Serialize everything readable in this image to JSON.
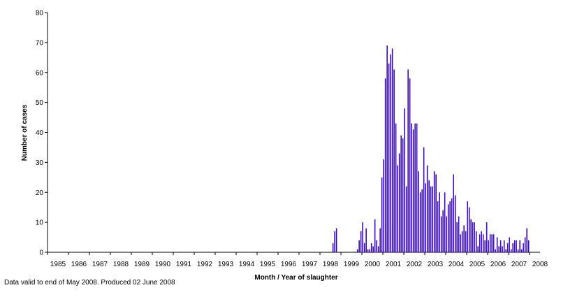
{
  "chart_data": {
    "type": "bar",
    "title": "",
    "xlabel": "Month / Year of slaughter",
    "ylabel": "Number of cases",
    "ylim": [
      0,
      80
    ],
    "yticks": [
      0,
      10,
      20,
      30,
      40,
      50,
      60,
      70,
      80
    ],
    "xlim": [
      "1985-01",
      "2008-07"
    ],
    "xtick_labels": [
      "1985",
      "1986",
      "1987",
      "1988",
      "1989",
      "1990",
      "1991",
      "1992",
      "1993",
      "1994",
      "1995",
      "1996",
      "1997",
      "1998",
      "1999",
      "2000",
      "2001",
      "2002",
      "2003",
      "2004",
      "2005",
      "2006",
      "2007",
      "2008"
    ],
    "grid": false,
    "bar_color": "#3300cc",
    "series": [
      {
        "values": [
          {
            "x": "1998-08",
            "y": 3
          },
          {
            "x": "1998-09",
            "y": 7
          },
          {
            "x": "1998-10",
            "y": 8
          },
          {
            "x": "1999-10",
            "y": 1
          },
          {
            "x": "1999-11",
            "y": 4
          },
          {
            "x": "1999-12",
            "y": 7
          },
          {
            "x": "2000-01",
            "y": 10
          },
          {
            "x": "2000-02",
            "y": 3
          },
          {
            "x": "2000-03",
            "y": 8
          },
          {
            "x": "2000-04",
            "y": 1
          },
          {
            "x": "2000-05",
            "y": 1
          },
          {
            "x": "2000-06",
            "y": 3
          },
          {
            "x": "2000-07",
            "y": 2
          },
          {
            "x": "2000-08",
            "y": 11
          },
          {
            "x": "2000-09",
            "y": 4
          },
          {
            "x": "2000-10",
            "y": 2
          },
          {
            "x": "2000-11",
            "y": 8
          },
          {
            "x": "2000-12",
            "y": 25
          },
          {
            "x": "2001-01",
            "y": 31
          },
          {
            "x": "2001-02",
            "y": 58
          },
          {
            "x": "2001-03",
            "y": 69
          },
          {
            "x": "2001-04",
            "y": 63
          },
          {
            "x": "2001-05",
            "y": 66
          },
          {
            "x": "2001-06",
            "y": 68
          },
          {
            "x": "2001-07",
            "y": 61
          },
          {
            "x": "2001-08",
            "y": 43
          },
          {
            "x": "2001-09",
            "y": 29
          },
          {
            "x": "2001-10",
            "y": 33
          },
          {
            "x": "2001-11",
            "y": 39
          },
          {
            "x": "2001-12",
            "y": 38
          },
          {
            "x": "2002-01",
            "y": 48
          },
          {
            "x": "2002-02",
            "y": 22
          },
          {
            "x": "2002-03",
            "y": 61
          },
          {
            "x": "2002-04",
            "y": 58
          },
          {
            "x": "2002-05",
            "y": 43
          },
          {
            "x": "2002-06",
            "y": 41
          },
          {
            "x": "2002-07",
            "y": 43
          },
          {
            "x": "2002-08",
            "y": 43
          },
          {
            "x": "2002-09",
            "y": 27
          },
          {
            "x": "2002-10",
            "y": 20
          },
          {
            "x": "2002-11",
            "y": 21
          },
          {
            "x": "2002-12",
            "y": 35
          },
          {
            "x": "2003-01",
            "y": 23
          },
          {
            "x": "2003-02",
            "y": 29
          },
          {
            "x": "2003-03",
            "y": 24
          },
          {
            "x": "2003-04",
            "y": 22
          },
          {
            "x": "2003-05",
            "y": 22
          },
          {
            "x": "2003-06",
            "y": 27
          },
          {
            "x": "2003-07",
            "y": 26
          },
          {
            "x": "2003-08",
            "y": 17
          },
          {
            "x": "2003-09",
            "y": 20
          },
          {
            "x": "2003-10",
            "y": 12
          },
          {
            "x": "2003-11",
            "y": 14
          },
          {
            "x": "2003-12",
            "y": 20
          },
          {
            "x": "2004-01",
            "y": 12
          },
          {
            "x": "2004-02",
            "y": 16
          },
          {
            "x": "2004-03",
            "y": 17
          },
          {
            "x": "2004-04",
            "y": 18
          },
          {
            "x": "2004-05",
            "y": 26
          },
          {
            "x": "2004-06",
            "y": 19
          },
          {
            "x": "2004-07",
            "y": 10
          },
          {
            "x": "2004-08",
            "y": 12
          },
          {
            "x": "2004-09",
            "y": 6
          },
          {
            "x": "2004-10",
            "y": 7
          },
          {
            "x": "2004-11",
            "y": 9
          },
          {
            "x": "2004-12",
            "y": 7
          },
          {
            "x": "2005-01",
            "y": 17
          },
          {
            "x": "2005-02",
            "y": 15
          },
          {
            "x": "2005-03",
            "y": 11
          },
          {
            "x": "2005-04",
            "y": 10
          },
          {
            "x": "2005-05",
            "y": 10
          },
          {
            "x": "2005-06",
            "y": 7
          },
          {
            "x": "2005-07",
            "y": 2
          },
          {
            "x": "2005-08",
            "y": 6
          },
          {
            "x": "2005-09",
            "y": 7
          },
          {
            "x": "2005-10",
            "y": 6
          },
          {
            "x": "2005-11",
            "y": 4
          },
          {
            "x": "2005-12",
            "y": 10
          },
          {
            "x": "2006-01",
            "y": 4
          },
          {
            "x": "2006-02",
            "y": 6
          },
          {
            "x": "2006-03",
            "y": 6
          },
          {
            "x": "2006-04",
            "y": 6
          },
          {
            "x": "2006-05",
            "y": 1
          },
          {
            "x": "2006-06",
            "y": 5
          },
          {
            "x": "2006-07",
            "y": 2
          },
          {
            "x": "2006-08",
            "y": 4
          },
          {
            "x": "2006-09",
            "y": 2
          },
          {
            "x": "2006-10",
            "y": 4
          },
          {
            "x": "2006-11",
            "y": 1
          },
          {
            "x": "2006-12",
            "y": 3
          },
          {
            "x": "2007-01",
            "y": 5
          },
          {
            "x": "2007-02",
            "y": 1
          },
          {
            "x": "2007-03",
            "y": 3
          },
          {
            "x": "2007-04",
            "y": 4
          },
          {
            "x": "2007-05",
            "y": 4
          },
          {
            "x": "2007-06",
            "y": 1
          },
          {
            "x": "2007-07",
            "y": 4
          },
          {
            "x": "2007-08",
            "y": 1
          },
          {
            "x": "2007-09",
            "y": 3
          },
          {
            "x": "2007-10",
            "y": 5
          },
          {
            "x": "2007-11",
            "y": 8
          },
          {
            "x": "2007-12",
            "y": 4
          }
        ]
      }
    ]
  },
  "footnote": "Data valid to end of May 2008. Produced 02 June 2008"
}
